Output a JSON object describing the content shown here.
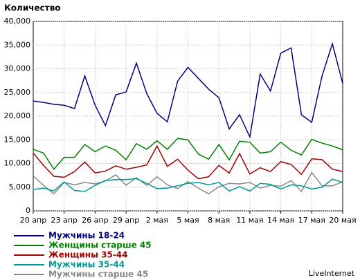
{
  "chart_data": {
    "type": "line",
    "title": "Количество",
    "footer": "LiveInternet",
    "categories": [
      "20 апр",
      null,
      null,
      "23 апр",
      null,
      null,
      "26 апр",
      null,
      null,
      "29 апр",
      null,
      null,
      "2 мая",
      null,
      null,
      "5 мая",
      null,
      null,
      "8 мая",
      null,
      null,
      "11 мая",
      null,
      null,
      "14 мая",
      null,
      null,
      "17 мая",
      null,
      null,
      "20 мая"
    ],
    "ylim": [
      0,
      40000
    ],
    "yticks": [
      0,
      {
        "value": 5000,
        "label": "5,000"
      },
      {
        "value": 10000,
        "label": "10,000"
      },
      {
        "value": 15000,
        "label": "15,000"
      },
      {
        "value": 20000,
        "label": "20,000"
      },
      {
        "value": 25000,
        "label": "25,000"
      },
      {
        "value": 30000,
        "label": "30,000"
      },
      {
        "value": 35000,
        "label": "35,000"
      },
      {
        "value": 40000,
        "label": "40,000"
      }
    ],
    "grid": true,
    "series": [
      {
        "name": "Мужчины 18-24",
        "color": "#000080",
        "values": [
          23200,
          22900,
          22500,
          22300,
          21600,
          28500,
          22300,
          18000,
          24500,
          25100,
          31200,
          24800,
          20600,
          18800,
          27400,
          30300,
          28000,
          25700,
          23900,
          17300,
          20300,
          15600,
          28900,
          25300,
          33300,
          34400,
          20300,
          18700,
          28500,
          35300,
          26900
        ]
      },
      {
        "name": "Женщины старше 45",
        "color": "#008000",
        "values": [
          13000,
          12200,
          8800,
          11300,
          11300,
          14000,
          12500,
          13700,
          12800,
          10800,
          14200,
          13000,
          14800,
          13000,
          15300,
          15000,
          12000,
          10900,
          14000,
          10800,
          14700,
          14500,
          12200,
          12500,
          14500,
          12800,
          11800,
          15100,
          14300,
          13700,
          12900
        ]
      },
      {
        "name": "Женщины 35-44",
        "color": "#a00000",
        "values": [
          12200,
          9600,
          7300,
          7100,
          8300,
          10300,
          8000,
          8400,
          9500,
          8800,
          9200,
          9700,
          13700,
          9400,
          10900,
          8600,
          6800,
          7200,
          9600,
          8000,
          12100,
          7800,
          9100,
          8300,
          10400,
          9800,
          7700,
          11000,
          10800,
          8800,
          8300
        ]
      },
      {
        "name": "Мужчины 35-44",
        "color": "#009999",
        "values": [
          4500,
          4800,
          4200,
          6100,
          4300,
          4100,
          5400,
          6400,
          6600,
          6600,
          6800,
          5800,
          4700,
          4800,
          5300,
          5800,
          6000,
          5500,
          6000,
          4200,
          5100,
          4200,
          5800,
          5600,
          4600,
          5500,
          5300,
          4600,
          5000,
          6700,
          6000
        ]
      },
      {
        "name": "Мужчины старше 45",
        "color": "#888888",
        "values": [
          7400,
          5400,
          3600,
          6000,
          5500,
          6000,
          5700,
          6300,
          7600,
          5400,
          7000,
          5400,
          7200,
          5500,
          4700,
          6200,
          4800,
          3600,
          5100,
          5800,
          5700,
          6000,
          4800,
          5400,
          5200,
          6400,
          4100,
          8100,
          5300,
          5300,
          6100
        ]
      }
    ]
  }
}
